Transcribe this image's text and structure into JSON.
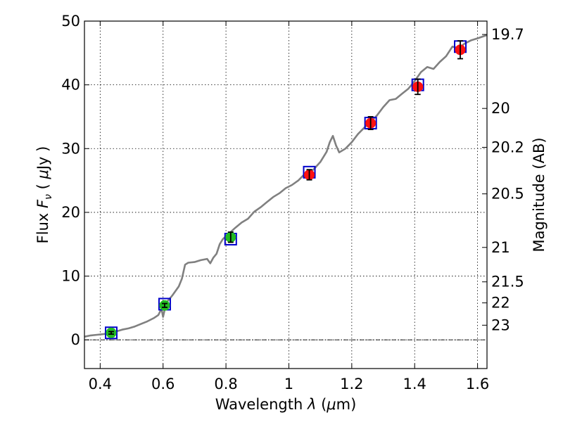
{
  "chart_data": {
    "type": "scatter",
    "xlabel": "Wavelength  λ (μm)",
    "ylabel": "Flux  F_ν  ( μJy )",
    "ylabel_parts": {
      "pre": "Flux  ",
      "sym": "F",
      "sub": "ν",
      "post": "  ( ",
      "mu": "μ",
      "unit": "Jy )"
    },
    "xlabel_parts": {
      "pre": "Wavelength  ",
      "lam": "λ",
      "post": " (",
      "mu": "μ",
      "unit": "m)"
    },
    "y2label": "Magnitude (AB)",
    "xlim": [
      0.35,
      1.63
    ],
    "ylim": [
      -4.5,
      50
    ],
    "xticks": [
      0.4,
      0.6,
      0.8,
      1.0,
      1.2,
      1.4,
      1.6
    ],
    "xtick_labels": [
      "0.4",
      "0.6",
      "0.8",
      "1",
      "1.2",
      "1.4",
      "1.6"
    ],
    "yticks": [
      0,
      10,
      20,
      30,
      40,
      50
    ],
    "ytick_labels": [
      "0",
      "10",
      "20",
      "30",
      "40",
      "50"
    ],
    "right_ticks": [
      {
        "label": "19.7",
        "flux": 47.9
      },
      {
        "label": "20",
        "flux": 36.3
      },
      {
        "label": "20.2",
        "flux": 30.2
      },
      {
        "label": "20.5",
        "flux": 22.9
      },
      {
        "label": "21",
        "flux": 14.5
      },
      {
        "label": "21.5",
        "flux": 9.1
      },
      {
        "label": "22",
        "flux": 5.8
      },
      {
        "label": "23",
        "flux": 2.3
      }
    ],
    "reference_line_y": 0,
    "colors": {
      "spectrum": "#808080",
      "model_box": "#0000cc",
      "optical_points": "#22bb22",
      "nir_points": "#ff1111",
      "errorbar": "#000000"
    },
    "spectrum": {
      "name": "Model spectrum",
      "points": [
        [
          0.35,
          0.5
        ],
        [
          0.37,
          0.7
        ],
        [
          0.39,
          0.8
        ],
        [
          0.41,
          0.9
        ],
        [
          0.43,
          1.1
        ],
        [
          0.45,
          1.3
        ],
        [
          0.47,
          1.6
        ],
        [
          0.49,
          1.8
        ],
        [
          0.51,
          2.1
        ],
        [
          0.53,
          2.5
        ],
        [
          0.55,
          2.9
        ],
        [
          0.57,
          3.4
        ],
        [
          0.585,
          3.9
        ],
        [
          0.595,
          4.9
        ],
        [
          0.6,
          3.6
        ],
        [
          0.61,
          5.8
        ],
        [
          0.63,
          7.0
        ],
        [
          0.65,
          8.4
        ],
        [
          0.66,
          9.6
        ],
        [
          0.67,
          11.8
        ],
        [
          0.68,
          12.1
        ],
        [
          0.7,
          12.2
        ],
        [
          0.72,
          12.5
        ],
        [
          0.74,
          12.7
        ],
        [
          0.75,
          12.0
        ],
        [
          0.76,
          12.9
        ],
        [
          0.77,
          13.5
        ],
        [
          0.78,
          15.0
        ],
        [
          0.79,
          15.8
        ],
        [
          0.81,
          16.7
        ],
        [
          0.83,
          17.6
        ],
        [
          0.85,
          18.4
        ],
        [
          0.87,
          19.0
        ],
        [
          0.89,
          20.1
        ],
        [
          0.91,
          20.8
        ],
        [
          0.93,
          21.6
        ],
        [
          0.95,
          22.4
        ],
        [
          0.97,
          23.0
        ],
        [
          0.99,
          23.8
        ],
        [
          1.01,
          24.3
        ],
        [
          1.03,
          25.0
        ],
        [
          1.05,
          26.0
        ],
        [
          1.07,
          26.4
        ],
        [
          1.08,
          26.8
        ],
        [
          1.1,
          27.9
        ],
        [
          1.12,
          29.5
        ],
        [
          1.13,
          31.0
        ],
        [
          1.14,
          32.0
        ],
        [
          1.15,
          30.5
        ],
        [
          1.16,
          29.4
        ],
        [
          1.18,
          30.0
        ],
        [
          1.2,
          31.0
        ],
        [
          1.22,
          32.3
        ],
        [
          1.24,
          33.3
        ],
        [
          1.26,
          34.2
        ],
        [
          1.28,
          35.2
        ],
        [
          1.3,
          36.5
        ],
        [
          1.32,
          37.6
        ],
        [
          1.34,
          37.8
        ],
        [
          1.36,
          38.6
        ],
        [
          1.38,
          39.4
        ],
        [
          1.4,
          40.6
        ],
        [
          1.42,
          42.0
        ],
        [
          1.44,
          42.8
        ],
        [
          1.46,
          42.5
        ],
        [
          1.48,
          43.6
        ],
        [
          1.5,
          44.5
        ],
        [
          1.52,
          46.0
        ],
        [
          1.54,
          45.8
        ],
        [
          1.56,
          46.5
        ],
        [
          1.58,
          47.0
        ],
        [
          1.6,
          47.3
        ],
        [
          1.63,
          47.8
        ]
      ]
    },
    "model_boxes": [
      {
        "x": 0.435,
        "y": 1.1
      },
      {
        "x": 0.605,
        "y": 5.6
      },
      {
        "x": 0.815,
        "y": 15.8
      },
      {
        "x": 1.065,
        "y": 26.3
      },
      {
        "x": 1.26,
        "y": 34.0
      },
      {
        "x": 1.41,
        "y": 40.0
      },
      {
        "x": 1.545,
        "y": 46.0
      }
    ],
    "observed_points": [
      {
        "x": 0.435,
        "y": 1.1,
        "err": 0.2,
        "band": "optical"
      },
      {
        "x": 0.605,
        "y": 5.4,
        "err": 0.3,
        "band": "optical"
      },
      {
        "x": 0.815,
        "y": 16.1,
        "err": 0.8,
        "band": "optical"
      },
      {
        "x": 1.065,
        "y": 25.9,
        "err": 0.8,
        "band": "nir"
      },
      {
        "x": 1.26,
        "y": 34.0,
        "err": 1.0,
        "band": "nir"
      },
      {
        "x": 1.41,
        "y": 39.7,
        "err": 1.2,
        "band": "nir"
      },
      {
        "x": 1.545,
        "y": 45.5,
        "err": 1.4,
        "band": "nir"
      }
    ]
  }
}
